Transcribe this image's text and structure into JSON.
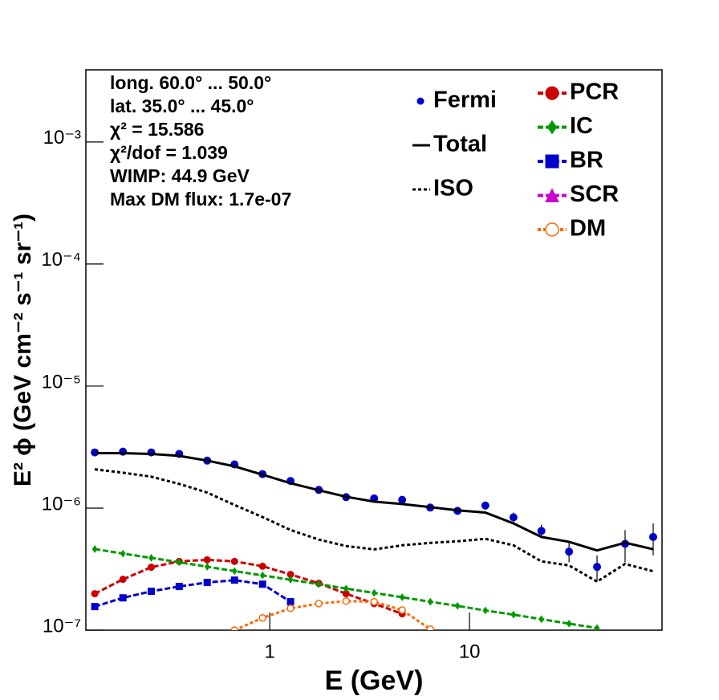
{
  "chart_data": {
    "type": "line",
    "x_label": "E (GeV)",
    "y_label": "E² ϕ (GeV cm⁻² s⁻¹ sr⁻¹)",
    "annotations": [
      "long. 60.0° ... 50.0°",
      "lat. 35.0° ... 45.0°",
      "χ² = 15.586",
      "χ²/dof = 1.039",
      "WIMP: 44.9 GeV",
      "Max DM flux: 1.7e-07"
    ],
    "log_x": true,
    "log_y": true,
    "xlim": [
      0.12,
      92
    ],
    "ylim": [
      1e-07,
      0.0039
    ],
    "xticks": [
      1,
      10
    ],
    "yticks": [
      {
        "value": 1e-07,
        "label": "10⁻⁷"
      },
      {
        "value": 1e-06,
        "label": "10⁻⁶"
      },
      {
        "value": 1e-05,
        "label": "10⁻⁵"
      },
      {
        "value": 0.0001,
        "label": "10⁻⁴"
      },
      {
        "value": 0.001,
        "label": "10⁻³"
      }
    ],
    "x": [
      0.133,
      0.184,
      0.255,
      0.352,
      0.486,
      0.666,
      0.92,
      1.27,
      1.76,
      2.41,
      3.33,
      4.6,
      6.36,
      8.71,
      12.0,
      16.6,
      22.9,
      31.5,
      43.5,
      60.1,
      83.1
    ],
    "series": [
      {
        "name": "Fermi",
        "color": "#0000cc",
        "style": "points",
        "marker": "circle",
        "values": [
          2.86e-06,
          2.9e-06,
          2.86e-06,
          2.78e-06,
          2.45e-06,
          2.28e-06,
          1.9e-06,
          1.67e-06,
          1.41e-06,
          1.23e-06,
          1.2e-06,
          1.17e-06,
          1.01e-06,
          9.5e-07,
          1.05e-06,
          8.4e-07,
          6.5e-07,
          4.4e-07,
          3.3e-07,
          5.1e-07,
          5.8e-07
        ],
        "errors": [
          8e-08,
          8e-08,
          7e-08,
          7e-08,
          6e-08,
          6e-08,
          5e-08,
          5e-08,
          4e-08,
          4e-08,
          4e-08,
          5e-08,
          5e-08,
          6e-08,
          8e-08,
          8e-08,
          8e-08,
          8e-08,
          8e-08,
          1.5e-07,
          1.7e-07
        ]
      },
      {
        "name": "Total",
        "color": "#000000",
        "style": "solid",
        "values": [
          2.82e-06,
          2.82e-06,
          2.78e-06,
          2.68e-06,
          2.45e-06,
          2.2e-06,
          1.88e-06,
          1.6e-06,
          1.4e-06,
          1.24e-06,
          1.13e-06,
          1.08e-06,
          1.02e-06,
          9.6e-07,
          9.2e-07,
          7.5e-07,
          5.8e-07,
          5.3e-07,
          4.5e-07,
          5.2e-07,
          4.6e-07
        ]
      },
      {
        "name": "ISO",
        "color": "#000000",
        "style": "dotted",
        "values": [
          2.08e-06,
          1.95e-06,
          1.81e-06,
          1.58e-06,
          1.34e-06,
          1.06e-06,
          8.45e-07,
          6.62e-07,
          5.52e-07,
          4.89e-07,
          4.59e-07,
          4.96e-07,
          5.19e-07,
          5.35e-07,
          5.6e-07,
          4.96e-07,
          3.66e-07,
          3.39e-07,
          2.5e-07,
          3.49e-07,
          3.04e-07
        ]
      },
      {
        "name": "PCR",
        "color": "#cc0000",
        "style": "dashed",
        "marker": "circle",
        "values": [
          1.99e-07,
          2.61e-07,
          3.28e-07,
          3.66e-07,
          3.77e-07,
          3.66e-07,
          3.34e-07,
          2.86e-07,
          2.42e-07,
          1.99e-07,
          1.65e-07,
          1.36e-07,
          null,
          null,
          null,
          null,
          null,
          null,
          null,
          null,
          null
        ]
      },
      {
        "name": "IC",
        "color": "#009900",
        "style": "dashed",
        "marker": "diamond",
        "values": [
          4.62e-07,
          4.24e-07,
          3.91e-07,
          3.6e-07,
          3.31e-07,
          3.05e-07,
          2.81e-07,
          2.59e-07,
          2.38e-07,
          2.19e-07,
          2.02e-07,
          1.86e-07,
          1.71e-07,
          1.58e-07,
          1.45e-07,
          1.34e-07,
          1.23e-07,
          1.13e-07,
          1.04e-07,
          null,
          null
        ]
      },
      {
        "name": "BR",
        "color": "#0000cc",
        "style": "dashed",
        "marker": "square",
        "values": [
          1.56e-07,
          1.84e-07,
          2.08e-07,
          2.28e-07,
          2.46e-07,
          2.57e-07,
          2.38e-07,
          1.71e-07,
          null,
          null,
          null,
          null,
          null,
          null,
          null,
          null,
          null,
          null,
          null,
          null,
          null
        ]
      },
      {
        "name": "SCR",
        "color": "#cc00cc",
        "style": "dashed",
        "marker": "triangle",
        "values": [
          null,
          null,
          null,
          null,
          null,
          null,
          null,
          null,
          null,
          null,
          null,
          null,
          null,
          null,
          null,
          null,
          null,
          null,
          null,
          null,
          null
        ]
      },
      {
        "name": "DM",
        "color": "#ff6600",
        "style": "dotted",
        "marker": "open-circle",
        "values": [
          null,
          null,
          null,
          null,
          null,
          1e-07,
          1.26e-07,
          1.51e-07,
          1.65e-07,
          1.73e-07,
          1.71e-07,
          1.46e-07,
          1.02e-07,
          null,
          null,
          null,
          null,
          null,
          null,
          null,
          null
        ]
      }
    ]
  }
}
